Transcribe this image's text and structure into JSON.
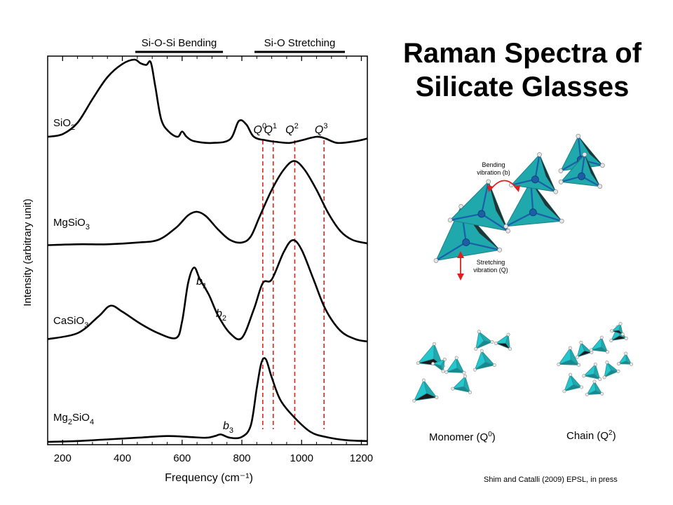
{
  "slide": {
    "title_line1": "Raman Spectra of",
    "title_line2": "Silicate Glasses",
    "citation": "Shim and Catalli (2009) EPSL, in press"
  },
  "colors": {
    "spectrum": "#000000",
    "guide": "#e8201a",
    "tetra": "#1fa9ad",
    "tetra_light": "#23c8cf",
    "atom": "#1c5fa8"
  },
  "chart_data": {
    "type": "line",
    "title": "",
    "xlabel": "Frequency (cm⁻¹)",
    "ylabel": "Intensity (arbitrary unit)",
    "xlim": [
      150,
      1220
    ],
    "x_ticks": [
      200,
      400,
      600,
      800,
      1000,
      1200
    ],
    "x_tick_labels": [
      "200",
      "400",
      "600",
      "800",
      "1000",
      "1200"
    ],
    "y_units": "arbitrary, spectra vertically offset",
    "series": [
      {
        "name": "SiO₂",
        "label_main": "SiO",
        "label_sub": "2",
        "label_tail": "",
        "points": [
          [
            150,
            0.12
          ],
          [
            200,
            0.15
          ],
          [
            250,
            0.28
          ],
          [
            300,
            0.55
          ],
          [
            350,
            0.8
          ],
          [
            400,
            0.95
          ],
          [
            440,
            1.0
          ],
          [
            460,
            0.96
          ],
          [
            480,
            0.94
          ],
          [
            495,
            0.97
          ],
          [
            510,
            0.7
          ],
          [
            530,
            0.32
          ],
          [
            555,
            0.18
          ],
          [
            585,
            0.12
          ],
          [
            600,
            0.18
          ],
          [
            615,
            0.12
          ],
          [
            640,
            0.07
          ],
          [
            700,
            0.05
          ],
          [
            760,
            0.09
          ],
          [
            790,
            0.3
          ],
          [
            815,
            0.26
          ],
          [
            840,
            0.12
          ],
          [
            880,
            0.08
          ],
          [
            920,
            0.06
          ],
          [
            960,
            0.05
          ],
          [
            1000,
            0.08
          ],
          [
            1050,
            0.12
          ],
          [
            1080,
            0.1
          ],
          [
            1120,
            0.05
          ],
          [
            1180,
            0.07
          ],
          [
            1220,
            0.1
          ]
        ]
      },
      {
        "name": "MgSiO₃",
        "label_main": "MgSiO",
        "label_sub": "3",
        "label_tail": "",
        "points": [
          [
            150,
            0.02
          ],
          [
            250,
            0.03
          ],
          [
            350,
            0.03
          ],
          [
            450,
            0.05
          ],
          [
            520,
            0.08
          ],
          [
            580,
            0.22
          ],
          [
            620,
            0.36
          ],
          [
            650,
            0.4
          ],
          [
            680,
            0.35
          ],
          [
            720,
            0.2
          ],
          [
            760,
            0.08
          ],
          [
            800,
            0.05
          ],
          [
            830,
            0.12
          ],
          [
            860,
            0.35
          ],
          [
            900,
            0.65
          ],
          [
            940,
            0.88
          ],
          [
            975,
            0.98
          ],
          [
            1010,
            0.88
          ],
          [
            1050,
            0.65
          ],
          [
            1090,
            0.38
          ],
          [
            1130,
            0.18
          ],
          [
            1170,
            0.08
          ],
          [
            1220,
            0.04
          ]
        ]
      },
      {
        "name": "CaSiO₃",
        "label_main": "CaSiO",
        "label_sub": "3",
        "label_tail": "",
        "points": [
          [
            150,
            0.05
          ],
          [
            250,
            0.1
          ],
          [
            320,
            0.24
          ],
          [
            360,
            0.33
          ],
          [
            400,
            0.28
          ],
          [
            460,
            0.18
          ],
          [
            520,
            0.1
          ],
          [
            580,
            0.06
          ],
          [
            600,
            0.2
          ],
          [
            620,
            0.52
          ],
          [
            640,
            0.65
          ],
          [
            660,
            0.55
          ],
          [
            690,
            0.42
          ],
          [
            720,
            0.25
          ],
          [
            760,
            0.1
          ],
          [
            800,
            0.06
          ],
          [
            840,
            0.3
          ],
          [
            870,
            0.52
          ],
          [
            900,
            0.55
          ],
          [
            940,
            0.78
          ],
          [
            970,
            0.88
          ],
          [
            1000,
            0.8
          ],
          [
            1040,
            0.55
          ],
          [
            1080,
            0.3
          ],
          [
            1130,
            0.12
          ],
          [
            1180,
            0.05
          ],
          [
            1220,
            0.03
          ]
        ]
      },
      {
        "name": "Mg₂SiO₄",
        "label_main": "Mg",
        "label_sub": "2",
        "label_tail": "SiO₄",
        "points": [
          [
            150,
            0.0
          ],
          [
            250,
            0.01
          ],
          [
            350,
            0.03
          ],
          [
            450,
            0.05
          ],
          [
            550,
            0.07
          ],
          [
            620,
            0.06
          ],
          [
            680,
            0.05
          ],
          [
            710,
            0.07
          ],
          [
            730,
            0.09
          ],
          [
            760,
            0.05
          ],
          [
            800,
            0.06
          ],
          [
            830,
            0.2
          ],
          [
            850,
            0.65
          ],
          [
            865,
            0.95
          ],
          [
            880,
            1.0
          ],
          [
            900,
            0.78
          ],
          [
            930,
            0.5
          ],
          [
            980,
            0.28
          ],
          [
            1030,
            0.12
          ],
          [
            1080,
            0.06
          ],
          [
            1150,
            0.02
          ],
          [
            1220,
            0.01
          ]
        ]
      }
    ],
    "reference_lines": [
      {
        "label_main": "Q",
        "label_sup": "0",
        "x": 870
      },
      {
        "label_main": "Q",
        "label_sup": "1",
        "x": 905
      },
      {
        "label_main": "Q",
        "label_sup": "2",
        "x": 977
      },
      {
        "label_main": "Q",
        "label_sup": "3",
        "x": 1075
      }
    ],
    "bracket_labels": [
      {
        "text": "Si-O-Si Bending",
        "x_from": 495,
        "x_to": 545
      },
      {
        "text": "Si-O Stretching",
        "x_from": 815,
        "x_to": 1115
      }
    ],
    "peak_labels": [
      {
        "main": "b",
        "sub": "1",
        "x": 640,
        "series": "CaSiO₃"
      },
      {
        "main": "b",
        "sub": "2",
        "x": 700,
        "series": "CaSiO₃"
      },
      {
        "main": "b",
        "sub": "3",
        "x": 730,
        "series": "Mg₂SiO₄"
      }
    ]
  },
  "diagram": {
    "bending_label_1": "Bending",
    "bending_label_2": "vibration (b)",
    "stretching_label_1": "Stretching",
    "stretching_label_2": "vibration (Q)",
    "monomer_caption_main": "Monomer (Q",
    "monomer_caption_sup": "0",
    "monomer_caption_tail": ")",
    "chain_caption_main": "Chain (Q",
    "chain_caption_sup": "2",
    "chain_caption_tail": ")"
  }
}
